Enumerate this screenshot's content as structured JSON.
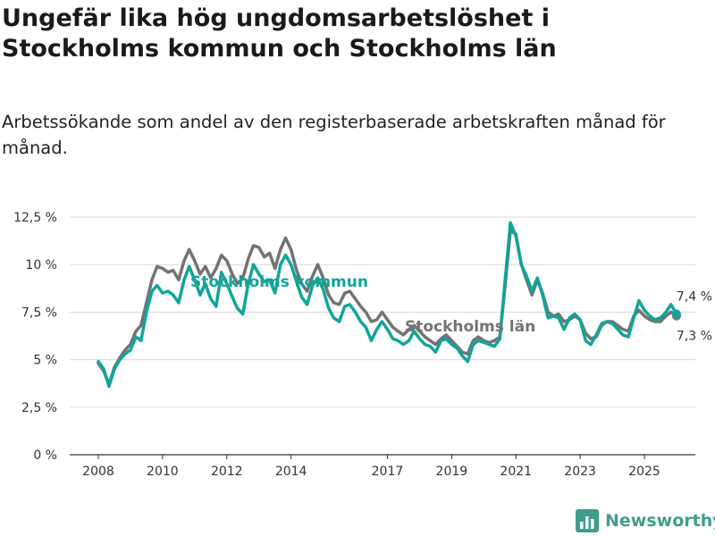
{
  "header": {
    "title": "Ungefär lika hög ungdomsarbetslöshet i Stockholms kommun och Stockholms län",
    "subtitle": "Arbetssökande som andel av den registerbaserade arbetskraften månad för månad."
  },
  "branding": {
    "logo_text": "Newsworthy"
  },
  "colors": {
    "kommun": "#12a49a",
    "lan": "#737373",
    "grid": "#d9d9d9",
    "axis": "#333333",
    "brand": "#3f9d8c"
  },
  "chart_data": {
    "type": "line",
    "title": "Ungefär lika hög ungdomsarbetslöshet i Stockholms kommun och Stockholms län",
    "xlabel": "",
    "ylabel": "",
    "ylim": [
      0,
      12.5
    ],
    "xlim": [
      2007.75,
      2026.5
    ],
    "grid": true,
    "y_ticks": [
      {
        "value": 0,
        "label": "0 %"
      },
      {
        "value": 2.5,
        "label": "2,5 %"
      },
      {
        "value": 5,
        "label": "5 %"
      },
      {
        "value": 7.5,
        "label": "7,5 %"
      },
      {
        "value": 10,
        "label": "10 %"
      },
      {
        "value": 12.5,
        "label": "12,5 %"
      }
    ],
    "x_ticks": [
      {
        "value": 2008,
        "label": "2008"
      },
      {
        "value": 2010,
        "label": "2010"
      },
      {
        "value": 2012,
        "label": "2012"
      },
      {
        "value": 2014,
        "label": "2014"
      },
      {
        "value": 2017,
        "label": "2017"
      },
      {
        "value": 2019,
        "label": "2019"
      },
      {
        "value": 2021,
        "label": "2021"
      },
      {
        "value": 2023,
        "label": "2023"
      },
      {
        "value": 2025,
        "label": "2025"
      }
    ],
    "series": [
      {
        "name": "Stockholms län",
        "label": "Stockholms län",
        "end_label": "7,3 %",
        "points": [
          [
            2008.0,
            4.8
          ],
          [
            2008.17,
            4.4
          ],
          [
            2008.33,
            3.7
          ],
          [
            2008.5,
            4.6
          ],
          [
            2008.67,
            5.1
          ],
          [
            2008.83,
            5.5
          ],
          [
            2009.0,
            5.8
          ],
          [
            2009.17,
            6.5
          ],
          [
            2009.33,
            6.8
          ],
          [
            2009.5,
            8.0
          ],
          [
            2009.67,
            9.2
          ],
          [
            2009.83,
            9.9
          ],
          [
            2010.0,
            9.8
          ],
          [
            2010.17,
            9.6
          ],
          [
            2010.33,
            9.7
          ],
          [
            2010.5,
            9.2
          ],
          [
            2010.67,
            10.2
          ],
          [
            2010.83,
            10.8
          ],
          [
            2011.0,
            10.2
          ],
          [
            2011.17,
            9.5
          ],
          [
            2011.33,
            9.9
          ],
          [
            2011.5,
            9.3
          ],
          [
            2011.67,
            9.8
          ],
          [
            2011.83,
            10.5
          ],
          [
            2012.0,
            10.2
          ],
          [
            2012.17,
            9.5
          ],
          [
            2012.33,
            9.0
          ],
          [
            2012.5,
            9.3
          ],
          [
            2012.67,
            10.3
          ],
          [
            2012.83,
            11.0
          ],
          [
            2013.0,
            10.9
          ],
          [
            2013.17,
            10.4
          ],
          [
            2013.33,
            10.6
          ],
          [
            2013.5,
            9.8
          ],
          [
            2013.67,
            10.8
          ],
          [
            2013.83,
            11.4
          ],
          [
            2014.0,
            10.8
          ],
          [
            2014.17,
            9.7
          ],
          [
            2014.33,
            9.0
          ],
          [
            2014.5,
            8.6
          ],
          [
            2014.67,
            9.4
          ],
          [
            2014.83,
            10.0
          ],
          [
            2015.0,
            9.3
          ],
          [
            2015.17,
            8.4
          ],
          [
            2015.33,
            8.0
          ],
          [
            2015.5,
            7.9
          ],
          [
            2015.67,
            8.5
          ],
          [
            2015.83,
            8.6
          ],
          [
            2016.0,
            8.2
          ],
          [
            2016.17,
            7.8
          ],
          [
            2016.33,
            7.5
          ],
          [
            2016.5,
            7.0
          ],
          [
            2016.67,
            7.1
          ],
          [
            2016.83,
            7.5
          ],
          [
            2017.0,
            7.1
          ],
          [
            2017.17,
            6.7
          ],
          [
            2017.33,
            6.5
          ],
          [
            2017.5,
            6.3
          ],
          [
            2017.67,
            6.6
          ],
          [
            2017.83,
            6.8
          ],
          [
            2018.0,
            6.5
          ],
          [
            2018.17,
            6.2
          ],
          [
            2018.33,
            6.0
          ],
          [
            2018.5,
            5.8
          ],
          [
            2018.67,
            6.1
          ],
          [
            2018.83,
            6.3
          ],
          [
            2019.0,
            6.0
          ],
          [
            2019.17,
            5.7
          ],
          [
            2019.33,
            5.4
          ],
          [
            2019.5,
            5.3
          ],
          [
            2019.67,
            6.0
          ],
          [
            2019.83,
            6.2
          ],
          [
            2020.0,
            6.0
          ],
          [
            2020.17,
            5.9
          ],
          [
            2020.33,
            6.0
          ],
          [
            2020.5,
            6.2
          ],
          [
            2020.67,
            9.0
          ],
          [
            2020.83,
            11.8
          ],
          [
            2021.0,
            11.6
          ],
          [
            2021.17,
            10.0
          ],
          [
            2021.33,
            9.2
          ],
          [
            2021.5,
            8.4
          ],
          [
            2021.67,
            9.2
          ],
          [
            2021.83,
            8.5
          ],
          [
            2022.0,
            7.5
          ],
          [
            2022.17,
            7.3
          ],
          [
            2022.33,
            7.4
          ],
          [
            2022.5,
            7.0
          ],
          [
            2022.67,
            7.1
          ],
          [
            2022.83,
            7.3
          ],
          [
            2023.0,
            7.1
          ],
          [
            2023.17,
            6.4
          ],
          [
            2023.33,
            6.1
          ],
          [
            2023.5,
            6.2
          ],
          [
            2023.67,
            6.8
          ],
          [
            2023.83,
            7.0
          ],
          [
            2024.0,
            7.0
          ],
          [
            2024.17,
            6.8
          ],
          [
            2024.33,
            6.6
          ],
          [
            2024.5,
            6.5
          ],
          [
            2024.67,
            7.3
          ],
          [
            2024.83,
            7.6
          ],
          [
            2025.0,
            7.3
          ],
          [
            2025.17,
            7.1
          ],
          [
            2025.33,
            7.0
          ],
          [
            2025.5,
            7.0
          ],
          [
            2025.67,
            7.3
          ],
          [
            2025.83,
            7.5
          ],
          [
            2026.0,
            7.3
          ]
        ]
      },
      {
        "name": "Stockholms kommun",
        "label": "Stockholms kommun",
        "end_label": "7,4 %",
        "points": [
          [
            2008.0,
            4.9
          ],
          [
            2008.17,
            4.5
          ],
          [
            2008.33,
            3.6
          ],
          [
            2008.5,
            4.5
          ],
          [
            2008.67,
            5.0
          ],
          [
            2008.83,
            5.3
          ],
          [
            2009.0,
            5.5
          ],
          [
            2009.17,
            6.2
          ],
          [
            2009.33,
            6.0
          ],
          [
            2009.5,
            7.5
          ],
          [
            2009.67,
            8.6
          ],
          [
            2009.83,
            8.9
          ],
          [
            2010.0,
            8.5
          ],
          [
            2010.17,
            8.6
          ],
          [
            2010.33,
            8.4
          ],
          [
            2010.5,
            8.0
          ],
          [
            2010.67,
            9.2
          ],
          [
            2010.83,
            9.9
          ],
          [
            2011.0,
            9.2
          ],
          [
            2011.17,
            8.4
          ],
          [
            2011.33,
            9.0
          ],
          [
            2011.5,
            8.2
          ],
          [
            2011.67,
            7.8
          ],
          [
            2011.83,
            9.6
          ],
          [
            2012.0,
            9.0
          ],
          [
            2012.17,
            8.3
          ],
          [
            2012.33,
            7.7
          ],
          [
            2012.5,
            7.4
          ],
          [
            2012.67,
            9.0
          ],
          [
            2012.83,
            10.0
          ],
          [
            2013.0,
            9.5
          ],
          [
            2013.17,
            9.1
          ],
          [
            2013.33,
            9.2
          ],
          [
            2013.5,
            8.5
          ],
          [
            2013.67,
            10.0
          ],
          [
            2013.83,
            10.5
          ],
          [
            2014.0,
            10.0
          ],
          [
            2014.17,
            9.1
          ],
          [
            2014.33,
            8.3
          ],
          [
            2014.5,
            7.9
          ],
          [
            2014.67,
            8.9
          ],
          [
            2014.83,
            9.3
          ],
          [
            2015.0,
            8.7
          ],
          [
            2015.17,
            7.7
          ],
          [
            2015.33,
            7.2
          ],
          [
            2015.5,
            7.0
          ],
          [
            2015.67,
            7.8
          ],
          [
            2015.83,
            7.9
          ],
          [
            2016.0,
            7.5
          ],
          [
            2016.17,
            7.0
          ],
          [
            2016.33,
            6.7
          ],
          [
            2016.5,
            6.0
          ],
          [
            2016.67,
            6.6
          ],
          [
            2016.83,
            7.0
          ],
          [
            2017.0,
            6.6
          ],
          [
            2017.17,
            6.1
          ],
          [
            2017.33,
            6.0
          ],
          [
            2017.5,
            5.8
          ],
          [
            2017.67,
            6.0
          ],
          [
            2017.83,
            6.5
          ],
          [
            2018.0,
            6.1
          ],
          [
            2018.17,
            5.8
          ],
          [
            2018.33,
            5.7
          ],
          [
            2018.5,
            5.4
          ],
          [
            2018.67,
            6.0
          ],
          [
            2018.83,
            6.1
          ],
          [
            2019.0,
            5.8
          ],
          [
            2019.17,
            5.6
          ],
          [
            2019.33,
            5.2
          ],
          [
            2019.5,
            4.9
          ],
          [
            2019.67,
            5.8
          ],
          [
            2019.83,
            6.0
          ],
          [
            2020.0,
            5.9
          ],
          [
            2020.17,
            5.8
          ],
          [
            2020.33,
            5.7
          ],
          [
            2020.5,
            6.1
          ],
          [
            2020.67,
            9.3
          ],
          [
            2020.83,
            12.2
          ],
          [
            2021.0,
            11.5
          ],
          [
            2021.17,
            10.0
          ],
          [
            2021.33,
            9.4
          ],
          [
            2021.5,
            8.6
          ],
          [
            2021.67,
            9.3
          ],
          [
            2021.83,
            8.4
          ],
          [
            2022.0,
            7.2
          ],
          [
            2022.17,
            7.3
          ],
          [
            2022.33,
            7.2
          ],
          [
            2022.5,
            6.6
          ],
          [
            2022.67,
            7.2
          ],
          [
            2022.83,
            7.4
          ],
          [
            2023.0,
            7.1
          ],
          [
            2023.17,
            6.0
          ],
          [
            2023.33,
            5.8
          ],
          [
            2023.5,
            6.3
          ],
          [
            2023.67,
            6.9
          ],
          [
            2023.83,
            7.0
          ],
          [
            2024.0,
            6.9
          ],
          [
            2024.17,
            6.6
          ],
          [
            2024.33,
            6.3
          ],
          [
            2024.5,
            6.2
          ],
          [
            2024.67,
            7.2
          ],
          [
            2024.83,
            8.1
          ],
          [
            2025.0,
            7.6
          ],
          [
            2025.17,
            7.3
          ],
          [
            2025.33,
            7.1
          ],
          [
            2025.5,
            7.2
          ],
          [
            2025.67,
            7.5
          ],
          [
            2025.83,
            7.9
          ],
          [
            2026.0,
            7.4
          ]
        ]
      }
    ]
  }
}
